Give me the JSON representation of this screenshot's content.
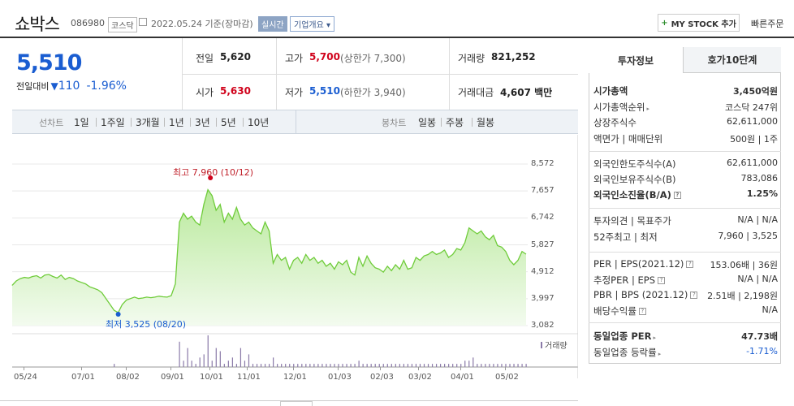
{
  "header": {
    "name": "쇼박스",
    "code": "086980",
    "market": "코스닥",
    "date_label": "2022.05.24 기준(장마감)",
    "realtime": "실시간",
    "corp_info": "기업개요",
    "mystock": "MY STOCK 추가",
    "quick_order": "빠른주문"
  },
  "quote": {
    "price": "5,510",
    "diff_label": "전일대비",
    "diff": "110",
    "pct": "-1.96%",
    "prev_label": "전일",
    "prev": "5,620",
    "high_label": "고가",
    "high": "5,700",
    "upper": "(상한가 7,300)",
    "volume_label": "거래량",
    "volume": "821,252",
    "open_label": "시가",
    "open": "5,630",
    "low_label": "저가",
    "low": "5,510",
    "lower": "(하한가 3,940)",
    "amount_label": "거래대금",
    "amount": "4,607 백만"
  },
  "period_bar": {
    "line_label": "선차트",
    "periods": [
      "1일",
      "1주일",
      "3개월",
      "1년",
      "3년",
      "5년",
      "10년"
    ],
    "candle_label": "봉차트",
    "candles": [
      "일봉",
      "주봉",
      "월봉"
    ]
  },
  "chart_data": {
    "type": "area",
    "y_ticks": [
      "8,572",
      "7,657",
      "6,742",
      "5,827",
      "4,912",
      "3,997",
      "3,082"
    ],
    "ylim": [
      3082,
      8572
    ],
    "x_ticks": [
      "05/24",
      "07/01",
      "08/02",
      "09/01",
      "10/01",
      "11/01",
      "12/01",
      "01/03",
      "02/03",
      "03/02",
      "04/01",
      "05/02"
    ],
    "high_annotation": "최고 7,960 (10/12)",
    "low_annotation": "최저 3,525 (08/20)",
    "volume_label": "거래량",
    "series": [
      {
        "values": [
          4450,
          4600,
          4680,
          4720,
          4700,
          4750,
          4780,
          4700,
          4800,
          4820,
          4750,
          4700,
          4800,
          4650,
          4720,
          4680,
          4600,
          4550,
          4500,
          4400,
          4350,
          4300,
          4200,
          4000,
          3800,
          3600,
          3525,
          3800,
          3950,
          4000,
          4050,
          4000,
          4020,
          4050,
          4030,
          4050,
          4080,
          4060,
          4050,
          4100,
          4500,
          6600,
          6900,
          6700,
          6800,
          6600,
          6500,
          7200,
          7700,
          7500,
          7000,
          7200,
          6600,
          6900,
          6700,
          7100,
          6700,
          6500,
          6600,
          6400,
          6300,
          6200,
          6600,
          6300,
          5200,
          5500,
          5300,
          5400,
          5000,
          5300,
          5400,
          5200,
          5500,
          5300,
          5400,
          5200,
          5300,
          5100,
          5200,
          5000,
          5250,
          5150,
          5300,
          4900,
          4800,
          5400,
          5100,
          5450,
          5200,
          5050,
          5000,
          4900,
          5100,
          4950,
          5150,
          5000,
          5300,
          5000,
          5050,
          5400,
          5300,
          5450,
          5500,
          5600,
          5500,
          5550,
          5650,
          5400,
          5500,
          5700,
          5650,
          5900,
          6400,
          6300,
          6200,
          6300,
          6100,
          6000,
          6150,
          5800,
          5750,
          5600,
          5300,
          5150,
          5300,
          5600,
          5510
        ]
      }
    ],
    "volume_values": [
      0,
      0,
      0,
      0,
      0,
      0,
      0,
      0,
      0,
      0,
      0,
      0,
      0,
      0,
      0,
      0,
      0,
      0,
      0,
      0,
      0,
      0,
      0,
      0,
      0,
      1,
      0,
      0,
      0,
      0,
      0,
      0,
      0,
      0,
      0,
      0,
      0,
      0,
      0,
      0,
      0,
      8,
      2,
      6,
      2,
      1,
      3,
      4,
      10,
      2,
      6,
      5,
      1,
      2,
      3,
      1,
      6,
      2,
      4,
      1,
      1,
      1,
      1,
      1,
      3,
      1,
      1,
      1,
      1,
      1,
      1,
      1,
      1,
      1,
      1,
      1,
      1,
      1,
      1,
      1,
      1,
      1,
      1,
      1,
      1,
      2,
      1,
      1,
      1,
      1,
      1,
      1,
      1,
      1,
      1,
      1,
      1,
      1,
      1,
      1,
      1,
      1,
      1,
      1,
      1,
      1,
      1,
      1,
      1,
      1,
      1,
      2,
      2,
      3,
      1,
      1,
      1,
      1,
      1,
      1,
      1,
      1,
      1,
      1,
      1,
      1,
      1
    ]
  },
  "side": {
    "tab1": "투자정보",
    "tab2": "호가10단계",
    "rows1": [
      {
        "l": "시가총액",
        "v": "3,450억원"
      },
      {
        "l": "시가총액순위",
        "v": "코스닥 247위"
      },
      {
        "l": "상장주식수",
        "v": "62,611,000"
      },
      {
        "l": "액면가 | 매매단위",
        "v": "500원 | 1주"
      }
    ],
    "rows2": [
      {
        "l": "외국인한도주식수(A)",
        "v": "62,611,000"
      },
      {
        "l": "외국인보유주식수(B)",
        "v": "783,086"
      },
      {
        "l": "외국인소진율(B/A)",
        "v": "1.25%"
      }
    ],
    "rows3": [
      {
        "l": "투자의견 | 목표주가",
        "v": "N/A | N/A"
      },
      {
        "l": "52주최고 | 최저",
        "v": "7,960 | 3,525"
      }
    ],
    "rows4": [
      {
        "l": "PER | EPS(2021.12)",
        "v": "153.06배 | 36원"
      },
      {
        "l": "추정PER | EPS",
        "v": "N/A | N/A"
      },
      {
        "l": "PBR | BPS (2021.12)",
        "v": "2.51배 | 2,198원"
      },
      {
        "l": "배당수익률",
        "v": "N/A"
      }
    ],
    "rows5": [
      {
        "l": "동일업종 PER",
        "v": "47.73배"
      },
      {
        "l": "동일업종 등락률",
        "v": "-1.71%"
      }
    ]
  }
}
